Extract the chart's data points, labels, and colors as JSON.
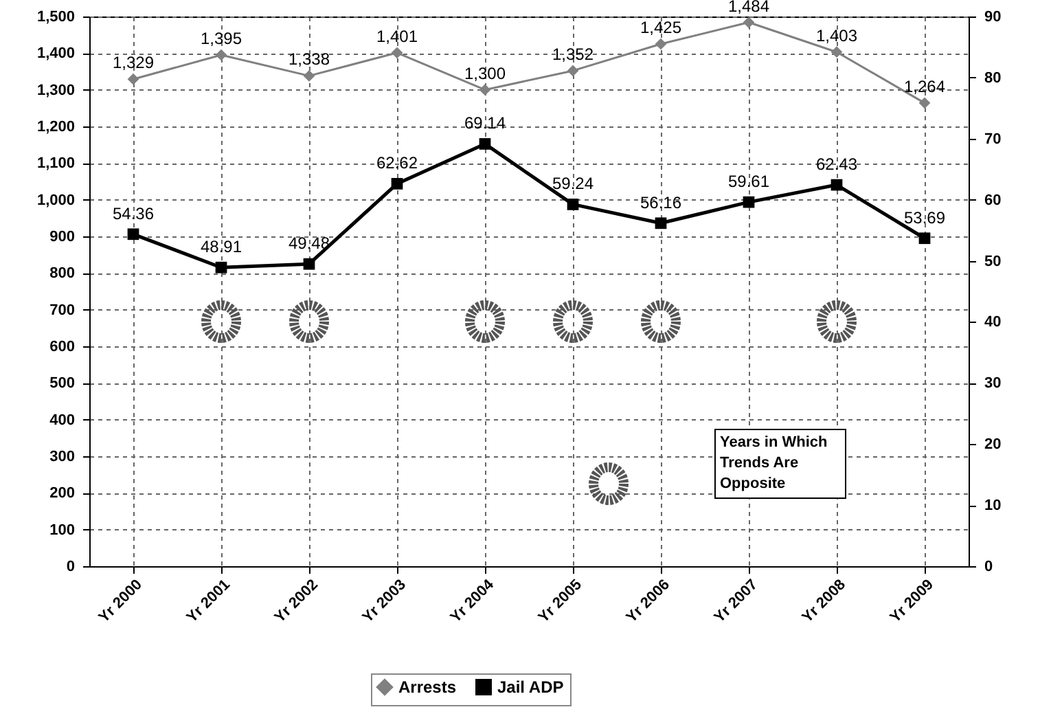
{
  "chart_data": {
    "type": "line",
    "categories": [
      "Yr 2000",
      "Yr 2001",
      "Yr 2002",
      "Yr 2003",
      "Yr 2004",
      "Yr 2005",
      "Yr 2006",
      "Yr 2007",
      "Yr 2008",
      "Yr 2009"
    ],
    "series": [
      {
        "name": "Arrests",
        "color": "#808080",
        "marker": "diamond",
        "values": [
          1329,
          1395,
          1338,
          1401,
          1300,
          1352,
          1425,
          1484,
          1403,
          1264
        ],
        "value_labels": [
          "1,329",
          "1,395",
          "1,338",
          "1,401",
          "1,300",
          "1,352",
          "1,425",
          "1,484",
          "1,403",
          "1,264"
        ]
      },
      {
        "name": "Jail ADP",
        "color": "#000000",
        "marker": "square",
        "axis": "y2",
        "values": [
          54.36,
          48.91,
          49.48,
          62.62,
          69.14,
          59.24,
          56.16,
          59.61,
          62.43,
          53.69
        ],
        "value_labels": [
          "54.36",
          "48.91",
          "49.48",
          "62.62",
          "69.14",
          "59.24",
          "56.16",
          "59.61",
          "62.43",
          "53.69"
        ]
      }
    ],
    "ylim": [
      0,
      1500
    ],
    "yticks": [
      0,
      100,
      200,
      300,
      400,
      500,
      600,
      700,
      800,
      900,
      {
        "value": 1000,
        "label": "1,000"
      },
      {
        "value": 1100,
        "label": "1,100"
      },
      {
        "value": 1200,
        "label": "1,200"
      },
      {
        "value": 1300,
        "label": "1,300"
      },
      {
        "value": 1400,
        "label": "1,400"
      },
      {
        "value": 1500,
        "label": "1,500"
      }
    ],
    "y2lim": [
      0,
      90
    ],
    "y2ticks": [
      0,
      10,
      20,
      30,
      40,
      50,
      60,
      70,
      80,
      90
    ],
    "grid": true,
    "legend": "bottom",
    "annotations": [
      "Years in Which Trends Are Opposite"
    ]
  }
}
